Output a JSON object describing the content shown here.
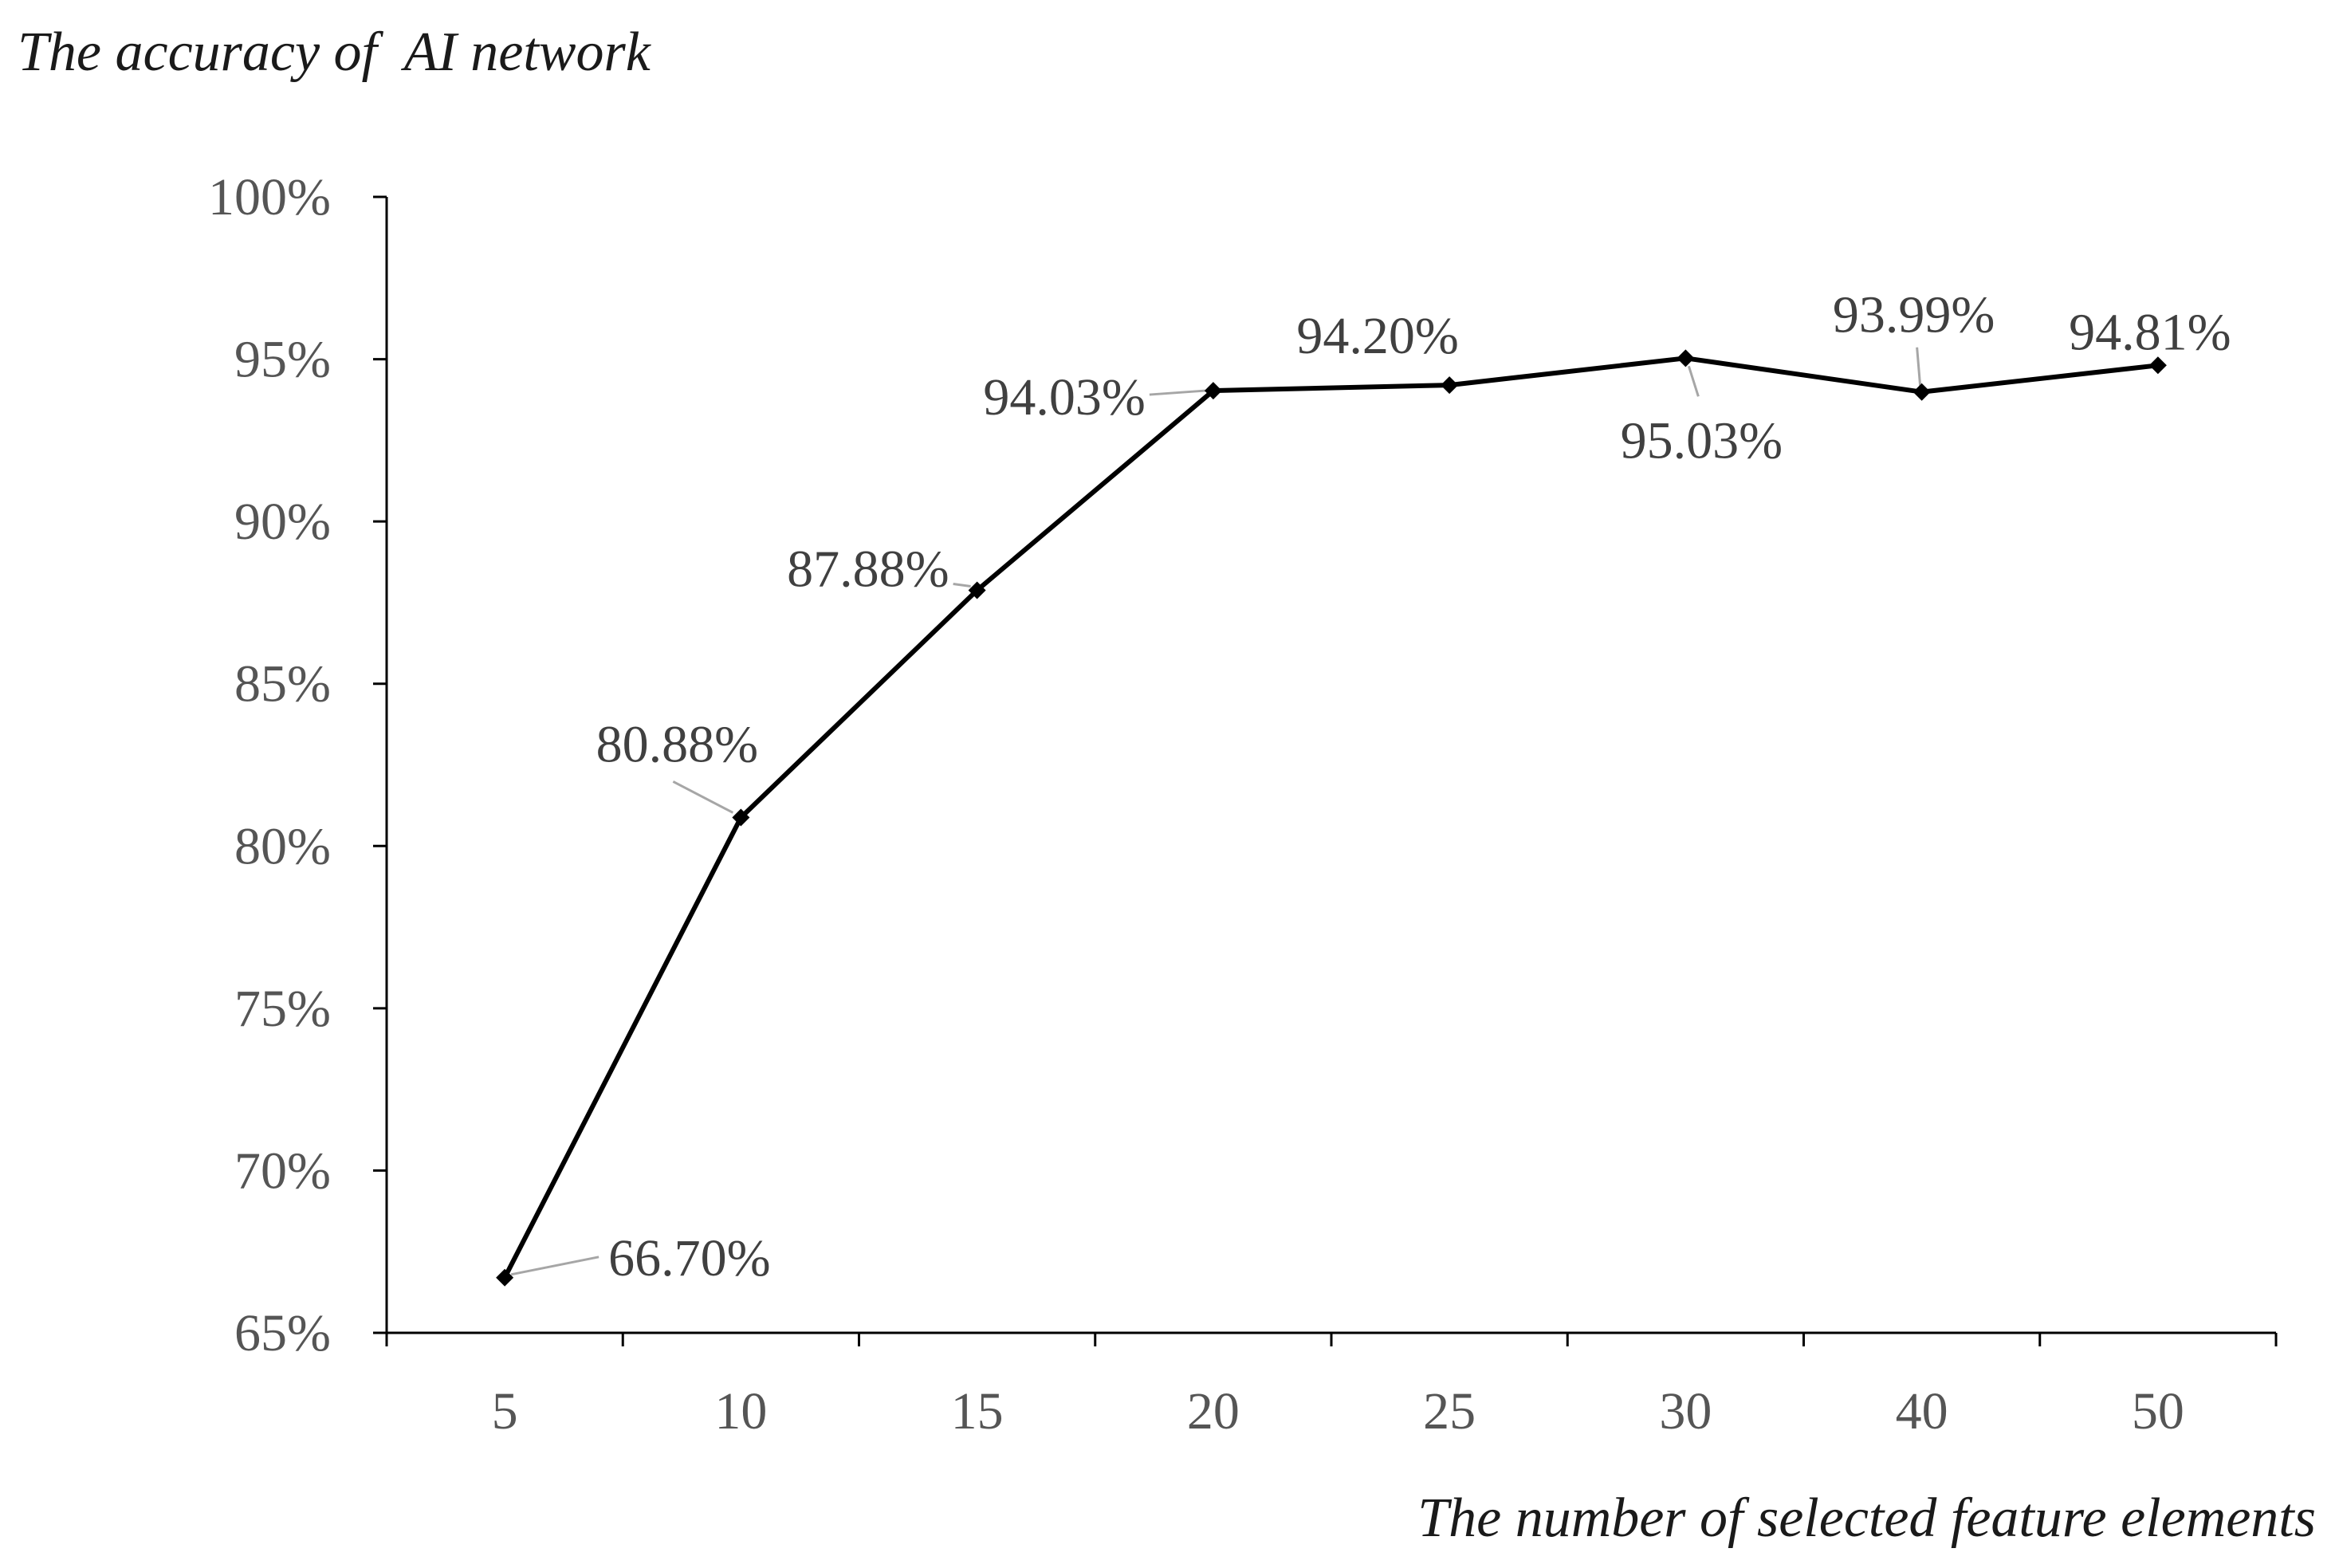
{
  "chart_data": {
    "type": "line",
    "title": "",
    "ylabel": "The accuracy of  AI network",
    "xlabel": "The number of selected feature elements",
    "categories": [
      "5",
      "10",
      "15",
      "20",
      "25",
      "30",
      "40",
      "50"
    ],
    "series": [
      {
        "values": [
          66.7,
          80.88,
          87.88,
          94.03,
          94.2,
          95.03,
          93.99,
          94.81
        ],
        "labels": [
          "66.70%",
          "80.88%",
          "87.88%",
          "94.03%",
          "94.20%",
          "95.03%",
          "93.99%",
          "94.81%"
        ],
        "color": "#000000",
        "marker": "diamond"
      }
    ],
    "ylim": [
      65,
      100
    ],
    "yticks": [
      "65%",
      "70%",
      "75%",
      "80%",
      "85%",
      "90%",
      "95%",
      "100%"
    ],
    "ytick_values": [
      65,
      70,
      75,
      80,
      85,
      90,
      95,
      100
    ],
    "grid": false,
    "legend": "none",
    "colors": {
      "line": "#000000",
      "axis": "#000000",
      "tick_label": "#555555",
      "data_label": "#404040",
      "leader": "#a6a6a6"
    }
  }
}
